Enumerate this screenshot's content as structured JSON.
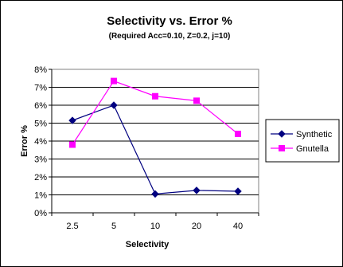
{
  "chart_data": {
    "type": "line",
    "title": "Selectivity vs. Error %",
    "subtitle": "(Required Acc=0.10, Z=0.2, j=10)",
    "xlabel": "Selectivity",
    "ylabel": "Error %",
    "categories": [
      "2.5",
      "5",
      "10",
      "20",
      "40"
    ],
    "ylim": [
      0,
      8
    ],
    "ytick_labels": [
      "0%",
      "1%",
      "2%",
      "3%",
      "4%",
      "5%",
      "6%",
      "7%",
      "8%"
    ],
    "grid": "horizontal",
    "legend_position": "right",
    "series": [
      {
        "name": "Synthetic",
        "color": "#000080",
        "marker": "diamond",
        "values": [
          5.15,
          6.0,
          1.05,
          1.25,
          1.2
        ]
      },
      {
        "name": "Gnutella",
        "color": "#ff00ff",
        "marker": "square",
        "values": [
          3.8,
          7.35,
          6.5,
          6.25,
          4.4
        ]
      }
    ]
  }
}
